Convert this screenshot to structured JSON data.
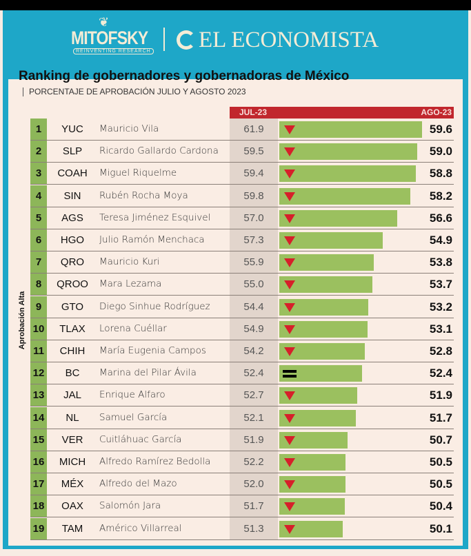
{
  "header": {
    "brand1": "MITOFSKY",
    "brand1_tagline": "REINVENTING RESEARCH",
    "brand2": "EL ECONOMISTA"
  },
  "title": "Ranking de gobernadores y gobernadoras de México",
  "subtitle": "PORCENTAJE DE APROBACIÓN JULIO Y AGOSTO 2023",
  "side_label": "Aprobación Alta",
  "colors": {
    "frame": "#1ea7c8",
    "header": "#c1272d",
    "bar": "#9bc05f",
    "rank": "#8db659",
    "down": "#d6202a"
  },
  "chart_data": {
    "type": "bar",
    "title": "Ranking de gobernadores y gobernadoras de México",
    "columns": [
      "JUL-23",
      "AGO-23"
    ],
    "rows": [
      {
        "rank": 1,
        "state": "YUC",
        "name": "Mauricio Vila",
        "jul": 61.9,
        "ago": 59.6,
        "trend": "down"
      },
      {
        "rank": 2,
        "state": "SLP",
        "name": "Ricardo Gallardo Cardona",
        "jul": 59.5,
        "ago": 59.0,
        "trend": "down"
      },
      {
        "rank": 3,
        "state": "COAH",
        "name": "Miguel Riquelme",
        "jul": 59.4,
        "ago": 58.8,
        "trend": "down"
      },
      {
        "rank": 4,
        "state": "SIN",
        "name": "Rubén Rocha Moya",
        "jul": 59.8,
        "ago": 58.2,
        "trend": "down"
      },
      {
        "rank": 5,
        "state": "AGS",
        "name": "Teresa Jiménez Esquivel",
        "jul": 57.0,
        "ago": 56.6,
        "trend": "down"
      },
      {
        "rank": 6,
        "state": "HGO",
        "name": "Julio Ramón Menchaca",
        "jul": 57.3,
        "ago": 54.9,
        "trend": "down"
      },
      {
        "rank": 7,
        "state": "QRO",
        "name": "Mauricio Kuri",
        "jul": 55.9,
        "ago": 53.8,
        "trend": "down"
      },
      {
        "rank": 8,
        "state": "QROO",
        "name": "Mara Lezama",
        "jul": 55.0,
        "ago": 53.7,
        "trend": "down"
      },
      {
        "rank": 9,
        "state": "GTO",
        "name": "Diego Sinhue Rodríguez",
        "jul": 54.4,
        "ago": 53.2,
        "trend": "down"
      },
      {
        "rank": 10,
        "state": "TLAX",
        "name": "Lorena Cuéllar",
        "jul": 54.9,
        "ago": 53.1,
        "trend": "down"
      },
      {
        "rank": 11,
        "state": "CHIH",
        "name": "María Eugenia Campos",
        "jul": 54.2,
        "ago": 52.8,
        "trend": "down"
      },
      {
        "rank": 12,
        "state": "BC",
        "name": "Marina del Pilar Ávila",
        "jul": 52.4,
        "ago": 52.4,
        "trend": "equal"
      },
      {
        "rank": 13,
        "state": "JAL",
        "name": "Enrique Alfaro",
        "jul": 52.7,
        "ago": 51.9,
        "trend": "down"
      },
      {
        "rank": 14,
        "state": "NL",
        "name": "Samuel García",
        "jul": 52.1,
        "ago": 51.7,
        "trend": "down"
      },
      {
        "rank": 15,
        "state": "VER",
        "name": "Cuitláhuac García",
        "jul": 51.9,
        "ago": 50.7,
        "trend": "down"
      },
      {
        "rank": 16,
        "state": "MICH",
        "name": "Alfredo Ramírez Bedolla",
        "jul": 52.2,
        "ago": 50.5,
        "trend": "down"
      },
      {
        "rank": 17,
        "state": "MÉX",
        "name": "Alfredo del Mazo",
        "jul": 52.0,
        "ago": 50.5,
        "trend": "down"
      },
      {
        "rank": 18,
        "state": "OAX",
        "name": "Salomón Jara",
        "jul": 51.7,
        "ago": 50.4,
        "trend": "down"
      },
      {
        "rank": 19,
        "state": "TAM",
        "name": "Américo Villarreal",
        "jul": 51.3,
        "ago": 50.1,
        "trend": "down"
      }
    ]
  }
}
